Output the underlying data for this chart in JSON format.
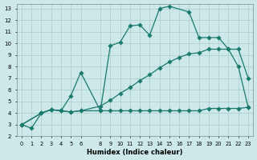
{
  "xlabel": "Humidex (Indice chaleur)",
  "bg_color": "#cce8e8",
  "grid_color": "#aacccc",
  "line_color": "#1a7a6e",
  "xlim": [
    -0.5,
    23.5
  ],
  "ylim": [
    2,
    13.4
  ],
  "xticks": [
    0,
    1,
    2,
    3,
    4,
    5,
    6,
    8,
    9,
    10,
    11,
    12,
    13,
    14,
    15,
    16,
    17,
    18,
    19,
    20,
    21,
    22,
    23
  ],
  "yticks": [
    2,
    3,
    4,
    5,
    6,
    7,
    8,
    9,
    10,
    11,
    12,
    13
  ],
  "line1_x": [
    0,
    1,
    2,
    3,
    4,
    5,
    6,
    8,
    9,
    10,
    11,
    12,
    13,
    14,
    15,
    17,
    18,
    19,
    20,
    21,
    22,
    23
  ],
  "line1_y": [
    3.0,
    2.7,
    4.0,
    4.3,
    4.2,
    5.5,
    7.5,
    4.2,
    9.8,
    10.1,
    11.5,
    11.6,
    10.7,
    13.0,
    13.2,
    12.7,
    10.5,
    10.5,
    10.5,
    9.5,
    9.5,
    7.0
  ],
  "line2_x": [
    0,
    2,
    3,
    4,
    5,
    6,
    8,
    9,
    10,
    11,
    12,
    13,
    14,
    15,
    16,
    17,
    18,
    19,
    20,
    21,
    22,
    23
  ],
  "line2_y": [
    3.0,
    4.0,
    4.3,
    4.2,
    4.1,
    4.2,
    4.2,
    4.2,
    4.2,
    4.2,
    4.2,
    4.2,
    4.2,
    4.2,
    4.2,
    4.2,
    4.2,
    4.4,
    4.4,
    4.4,
    4.4,
    4.5
  ],
  "line3_x": [
    0,
    2,
    3,
    4,
    5,
    6,
    8,
    9,
    10,
    11,
    12,
    13,
    14,
    15,
    16,
    17,
    18,
    19,
    20,
    21,
    22,
    23
  ],
  "line3_y": [
    3.0,
    4.0,
    4.3,
    4.2,
    4.1,
    4.2,
    4.6,
    5.1,
    5.7,
    6.2,
    6.8,
    7.3,
    7.9,
    8.4,
    8.8,
    9.1,
    9.2,
    9.5,
    9.5,
    9.5,
    8.0,
    4.5
  ]
}
